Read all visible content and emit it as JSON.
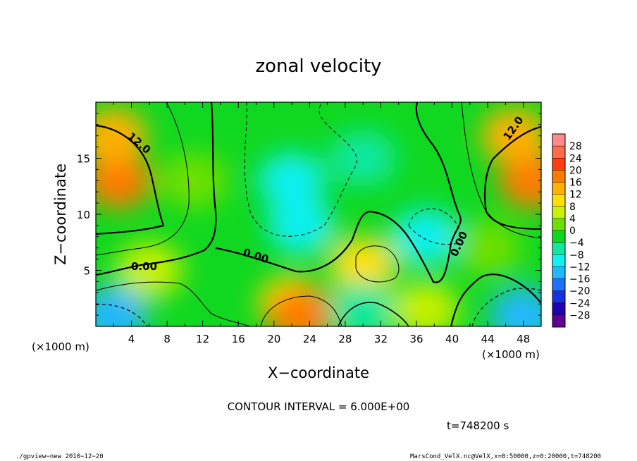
{
  "chart_data": {
    "type": "heatmap",
    "title": "zonal velocity",
    "xlabel": "X−coordinate",
    "ylabel": "Z−coordinate",
    "x_unit": "(×1000 m)",
    "y_unit": "(×1000 m)",
    "xlim": [
      0,
      50
    ],
    "ylim": [
      0,
      20
    ],
    "x_ticks": [
      4,
      8,
      12,
      16,
      20,
      24,
      28,
      32,
      36,
      40,
      44,
      48
    ],
    "y_ticks": [
      5,
      10,
      15
    ],
    "colorbar": {
      "ticks": [
        "28",
        "24",
        "20",
        "16",
        "12",
        "8",
        "4",
        "0",
        "−4",
        "−8",
        "−12",
        "−16",
        "−20",
        "−24",
        "−28"
      ],
      "values": [
        28,
        24,
        20,
        16,
        12,
        8,
        4,
        0,
        -4,
        -8,
        -12,
        -16,
        -20,
        -24,
        -28
      ],
      "colors": [
        "#ff8a8a",
        "#ff6a4a",
        "#ff3d10",
        "#ff7a00",
        "#ffb000",
        "#ffe000",
        "#c8f000",
        "#6ee000",
        "#10d820",
        "#10e8a0",
        "#10f0f0",
        "#20b8ff",
        "#2070ff",
        "#1830e0",
        "#2000b0",
        "#600090"
      ]
    },
    "contour_labels": [
      "12.0",
      "0.00",
      "0.00",
      "0.00",
      "12.0"
    ],
    "contour_interval_text": "CONTOUR INTERVAL = 6.000E+00",
    "regions": [
      {
        "x": 2.5,
        "z": 13,
        "value": 16
      },
      {
        "x": 2,
        "z": 17,
        "value": 12
      },
      {
        "x": 6,
        "z": 5,
        "value": 4
      },
      {
        "x": 2,
        "z": 1,
        "value": -12
      },
      {
        "x": 11,
        "z": 13,
        "value": 2
      },
      {
        "x": 22,
        "z": 13,
        "value": -8
      },
      {
        "x": 23,
        "z": 9,
        "value": -10
      },
      {
        "x": 30,
        "z": 15,
        "value": -4
      },
      {
        "x": 22,
        "z": 2,
        "value": 10
      },
      {
        "x": 23,
        "z": 1,
        "value": 16
      },
      {
        "x": 30,
        "z": 5.5,
        "value": 8
      },
      {
        "x": 30,
        "z": 1.5,
        "value": -6
      },
      {
        "x": 37,
        "z": 8,
        "value": -8
      },
      {
        "x": 44,
        "z": 7,
        "value": 2
      },
      {
        "x": 49,
        "z": 13,
        "value": 18
      },
      {
        "x": 47,
        "z": 17,
        "value": 12
      },
      {
        "x": 48,
        "z": 1,
        "value": -12
      },
      {
        "x": 37,
        "z": 1.5,
        "value": 4
      }
    ]
  },
  "footer": {
    "time": "t=748200 s",
    "program": "./gpview−new   2010−12−20",
    "source": "MarsCond_VelX.nc@VelX,x=0:50000,z=0:20000,t=748200"
  }
}
